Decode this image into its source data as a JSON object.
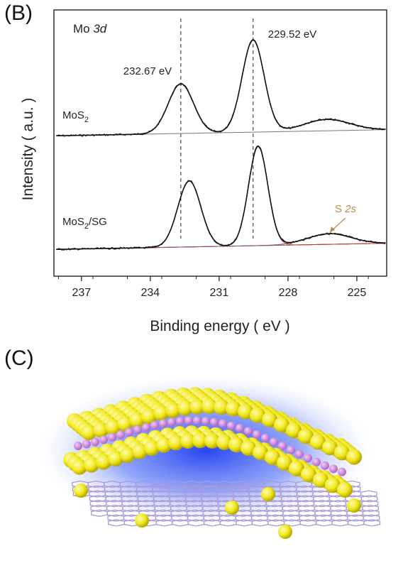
{
  "panels": {
    "b_label": "(B)",
    "c_label": "(C)"
  },
  "chart_data": {
    "type": "line",
    "title": "Mo 3d",
    "title_parts": [
      "Mo ",
      "3d"
    ],
    "xlabel": "Binding energy ( eV )",
    "ylabel": "Intensity ( a.u. )",
    "xlim": [
      238.2,
      223.7
    ],
    "x_reversed": true,
    "xticks": [
      237,
      234,
      231,
      228,
      225
    ],
    "yticks_shown": false,
    "grid": false,
    "series": [
      {
        "name": "MoS2",
        "label_parts": [
          "MoS",
          "2",
          ""
        ],
        "peaks": [
          {
            "position": 232.67,
            "label": "232.67 eV"
          },
          {
            "position": 229.52,
            "label": "229.52 eV"
          },
          {
            "position": 226.3,
            "label": ""
          }
        ]
      },
      {
        "name": "MoS2/SG",
        "label_parts": [
          "MoS",
          "2",
          "/SG"
        ],
        "peaks": [
          {
            "position": 232.3,
            "label": ""
          },
          {
            "position": 229.3,
            "label": ""
          },
          {
            "position": 226.2,
            "label": "S 2s"
          }
        ]
      }
    ],
    "reference_lines": [
      232.67,
      229.52
    ],
    "annotation": {
      "parts": [
        "S ",
        "2s"
      ],
      "color": "#b98a52"
    }
  },
  "colors": {
    "axis": "#222222",
    "raw": "#333333",
    "fit_mo": "#444444",
    "fit_red": "#c0392b",
    "fit_olive": "#8a8f2a",
    "sulfur": "#f2ee1a",
    "molybdenum": "#c77ad6",
    "graphene": "#a99ad6",
    "glow": "#2a4ff0"
  },
  "illustration": {
    "subject": "MoS2 layer above graphene sheet with adsorbed atoms"
  }
}
